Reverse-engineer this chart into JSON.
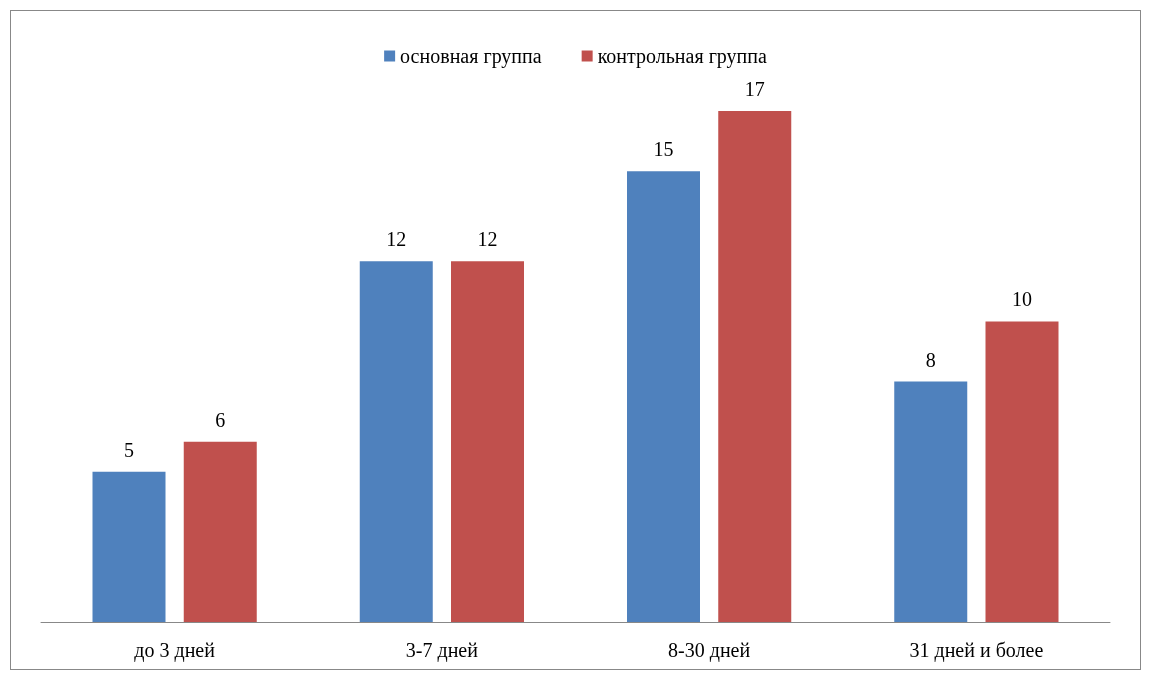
{
  "chart_data": {
    "type": "bar",
    "categories": [
      "до 3 дней",
      "3-7 дней",
      "8-30 дней",
      "31 дней и более"
    ],
    "series": [
      {
        "name": "основная группа",
        "color": "#4f81bd",
        "values": [
          5,
          12,
          15,
          8
        ]
      },
      {
        "name": "контрольная группа",
        "color": "#c0504d",
        "values": [
          6,
          12,
          17,
          10
        ]
      }
    ],
    "data_labels": true,
    "legend": "top",
    "tick_labels": "x"
  }
}
